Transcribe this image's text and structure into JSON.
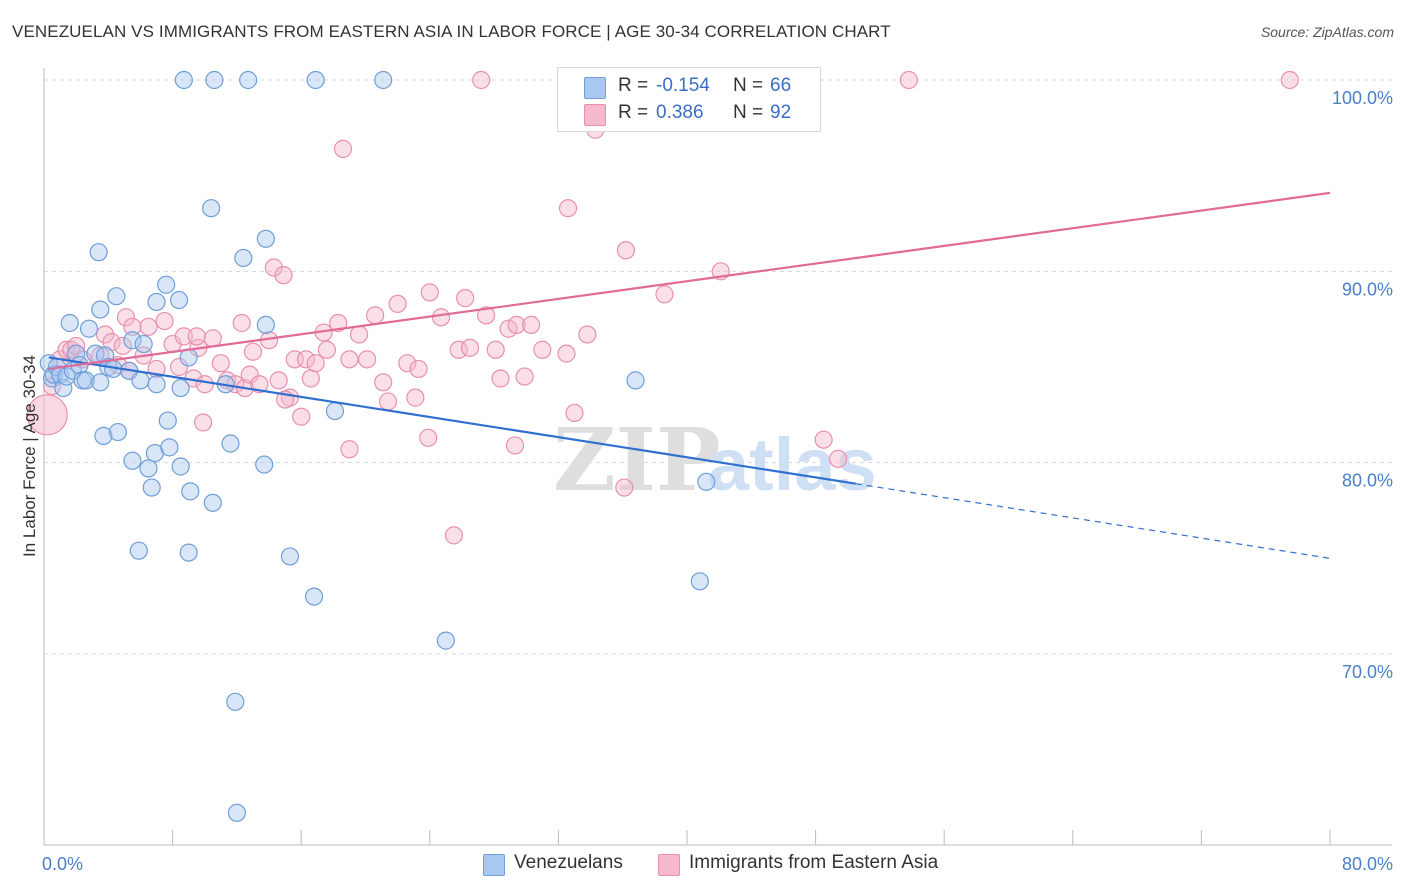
{
  "title": "VENEZUELAN VS IMMIGRANTS FROM EASTERN ASIA IN LABOR FORCE | AGE 30-34 CORRELATION CHART",
  "source": "Source: ZipAtlas.com",
  "watermark": "ZIPatlas",
  "colors": {
    "blue_fill": "#a8c8f0",
    "blue_stroke": "#6f9fd8",
    "blue_line": "#2f6fd0",
    "pink_fill": "#f5b8cc",
    "pink_stroke": "#e890ae",
    "pink_line": "#e06a98",
    "grid": "#d8d8d8",
    "tick_text": "#4a7fc8"
  },
  "legend": {
    "rows": [
      {
        "r_label": "R =",
        "r_value": "-0.154",
        "n_label": "N =",
        "n_value": "66",
        "color": "#a8c8f0"
      },
      {
        "r_label": "R =",
        "r_value": "0.386",
        "n_label": "N =",
        "n_value": "92",
        "color": "#f5b8cc"
      }
    ]
  },
  "bottom_legend": [
    "Venezuelans",
    "Immigrants from Eastern Asia"
  ],
  "chart_data": {
    "type": "scatter",
    "title": "VENEZUELAN VS IMMIGRANTS FROM EASTERN ASIA IN LABOR FORCE | AGE 30-34 CORRELATION CHART",
    "xlabel": "",
    "ylabel": "In Labor Force | Age 30-34",
    "xlim": [
      0,
      80
    ],
    "ylim": [
      60,
      103
    ],
    "x_tick_labels": [
      "0.0%",
      "80.0%"
    ],
    "y_ticks": [
      70,
      80,
      90,
      100
    ],
    "y_tick_labels": [
      "70.0%",
      "80.0%",
      "90.0%",
      "100.0%"
    ],
    "grid": true,
    "legend_position": "top-center",
    "series": [
      {
        "name": "Venezuelans",
        "color": "#a8c8f0",
        "points": [
          [
            0.3,
            85.2
          ],
          [
            0.5,
            84.4
          ],
          [
            0.6,
            84.6
          ],
          [
            0.8,
            85.0
          ],
          [
            1.0,
            84.6
          ],
          [
            1.2,
            83.9
          ],
          [
            1.4,
            84.5
          ],
          [
            1.6,
            87.3
          ],
          [
            1.8,
            84.8
          ],
          [
            2.0,
            85.7
          ],
          [
            2.2,
            85.1
          ],
          [
            2.4,
            84.3
          ],
          [
            2.6,
            84.3
          ],
          [
            2.8,
            87.0
          ],
          [
            3.2,
            85.7
          ],
          [
            3.5,
            84.2
          ],
          [
            3.8,
            85.6
          ],
          [
            4.0,
            85.0
          ],
          [
            4.3,
            84.9
          ],
          [
            5.3,
            84.8
          ],
          [
            5.5,
            86.4
          ],
          [
            6.0,
            84.3
          ],
          [
            6.2,
            86.2
          ],
          [
            7.0,
            84.1
          ],
          [
            8.5,
            83.9
          ],
          [
            9.0,
            85.5
          ],
          [
            11.3,
            84.1
          ],
          [
            3.5,
            88.0
          ],
          [
            4.5,
            88.7
          ],
          [
            7.6,
            89.3
          ],
          [
            8.4,
            88.5
          ],
          [
            7.0,
            88.4
          ],
          [
            3.4,
            91.0
          ],
          [
            12.4,
            90.7
          ],
          [
            13.8,
            91.7
          ],
          [
            10.4,
            93.3
          ],
          [
            3.7,
            81.4
          ],
          [
            4.6,
            81.6
          ],
          [
            7.7,
            82.2
          ],
          [
            11.6,
            81.0
          ],
          [
            18.1,
            82.7
          ],
          [
            5.5,
            80.1
          ],
          [
            6.5,
            79.7
          ],
          [
            6.9,
            80.5
          ],
          [
            7.8,
            80.8
          ],
          [
            8.5,
            79.8
          ],
          [
            13.7,
            79.9
          ],
          [
            6.7,
            78.7
          ],
          [
            9.1,
            78.5
          ],
          [
            10.5,
            77.9
          ],
          [
            5.9,
            75.4
          ],
          [
            9.0,
            75.3
          ],
          [
            15.3,
            75.1
          ],
          [
            16.8,
            73.0
          ],
          [
            25.0,
            70.7
          ],
          [
            11.9,
            67.5
          ],
          [
            12.0,
            61.7
          ],
          [
            8.7,
            100.0
          ],
          [
            10.6,
            100.0
          ],
          [
            12.7,
            100.0
          ],
          [
            16.9,
            100.0
          ],
          [
            21.1,
            100.0
          ],
          [
            36.8,
            84.3
          ],
          [
            41.2,
            79.0
          ],
          [
            40.8,
            73.8
          ],
          [
            13.8,
            87.2
          ]
        ]
      },
      {
        "name": "Immigrants from Eastern Asia",
        "color": "#f5b8cc",
        "big_point": [
          0.2,
          82.5
        ],
        "points": [
          [
            0.5,
            84.0
          ],
          [
            1.0,
            85.4
          ],
          [
            1.4,
            85.9
          ],
          [
            1.7,
            85.9
          ],
          [
            2.0,
            86.1
          ],
          [
            2.4,
            85.4
          ],
          [
            3.5,
            85.6
          ],
          [
            3.8,
            86.7
          ],
          [
            4.2,
            86.3
          ],
          [
            4.6,
            85.1
          ],
          [
            5.1,
            87.6
          ],
          [
            5.3,
            84.8
          ],
          [
            6.2,
            85.6
          ],
          [
            6.5,
            87.1
          ],
          [
            7.0,
            84.9
          ],
          [
            7.5,
            87.4
          ],
          [
            8.0,
            86.2
          ],
          [
            8.4,
            85.0
          ],
          [
            8.7,
            86.6
          ],
          [
            9.3,
            84.4
          ],
          [
            9.6,
            86.0
          ],
          [
            10.0,
            84.1
          ],
          [
            10.5,
            86.5
          ],
          [
            11.0,
            85.2
          ],
          [
            11.4,
            84.3
          ],
          [
            11.9,
            84.1
          ],
          [
            12.3,
            87.3
          ],
          [
            12.5,
            83.9
          ],
          [
            12.8,
            84.6
          ],
          [
            13.0,
            85.8
          ],
          [
            13.4,
            84.1
          ],
          [
            14.0,
            86.4
          ],
          [
            14.6,
            84.3
          ],
          [
            15.3,
            83.4
          ],
          [
            15.6,
            85.4
          ],
          [
            16.0,
            82.4
          ],
          [
            16.3,
            85.4
          ],
          [
            16.6,
            84.4
          ],
          [
            16.9,
            85.2
          ],
          [
            17.4,
            86.8
          ],
          [
            17.6,
            85.9
          ],
          [
            18.3,
            87.3
          ],
          [
            19.0,
            85.4
          ],
          [
            19.6,
            86.7
          ],
          [
            20.1,
            85.4
          ],
          [
            20.6,
            87.7
          ],
          [
            21.1,
            84.2
          ],
          [
            21.4,
            83.2
          ],
          [
            22.0,
            88.3
          ],
          [
            22.6,
            85.2
          ],
          [
            23.1,
            83.4
          ],
          [
            23.3,
            84.9
          ],
          [
            24.0,
            88.9
          ],
          [
            24.7,
            87.6
          ],
          [
            25.8,
            85.9
          ],
          [
            26.2,
            88.6
          ],
          [
            26.5,
            86.0
          ],
          [
            27.5,
            87.7
          ],
          [
            28.1,
            85.9
          ],
          [
            28.4,
            84.4
          ],
          [
            28.9,
            87.0
          ],
          [
            29.4,
            87.2
          ],
          [
            29.9,
            84.5
          ],
          [
            30.3,
            87.2
          ],
          [
            31.0,
            85.9
          ],
          [
            32.5,
            85.7
          ],
          [
            32.6,
            93.3
          ],
          [
            33.0,
            82.6
          ],
          [
            33.8,
            86.7
          ],
          [
            36.2,
            91.1
          ],
          [
            38.6,
            88.8
          ],
          [
            42.1,
            90.0
          ],
          [
            14.3,
            90.2
          ],
          [
            14.9,
            89.8
          ],
          [
            18.6,
            96.4
          ],
          [
            9.5,
            86.6
          ],
          [
            5.5,
            87.1
          ],
          [
            9.9,
            82.1
          ],
          [
            15.0,
            83.3
          ],
          [
            19.0,
            80.7
          ],
          [
            23.9,
            81.3
          ],
          [
            29.3,
            80.9
          ],
          [
            25.5,
            76.2
          ],
          [
            36.1,
            78.7
          ],
          [
            48.5,
            81.2
          ],
          [
            49.4,
            80.2
          ],
          [
            27.2,
            100.0
          ],
          [
            37.3,
            100.0
          ],
          [
            53.8,
            100.0
          ],
          [
            77.5,
            100.0
          ],
          [
            34.3,
            97.4
          ],
          [
            4.9,
            86.1
          ]
        ]
      }
    ],
    "trend_lines": [
      {
        "series": "Venezuelans",
        "x": [
          0.3,
          50.5
        ],
        "y": [
          85.5,
          78.9
        ],
        "dashed_extension": {
          "x": [
            50.5,
            80.0
          ],
          "y": [
            78.9,
            75.0
          ]
        }
      },
      {
        "series": "Immigrants from Eastern Asia",
        "x": [
          0.3,
          80.0
        ],
        "y": [
          84.9,
          94.1
        ]
      }
    ]
  }
}
